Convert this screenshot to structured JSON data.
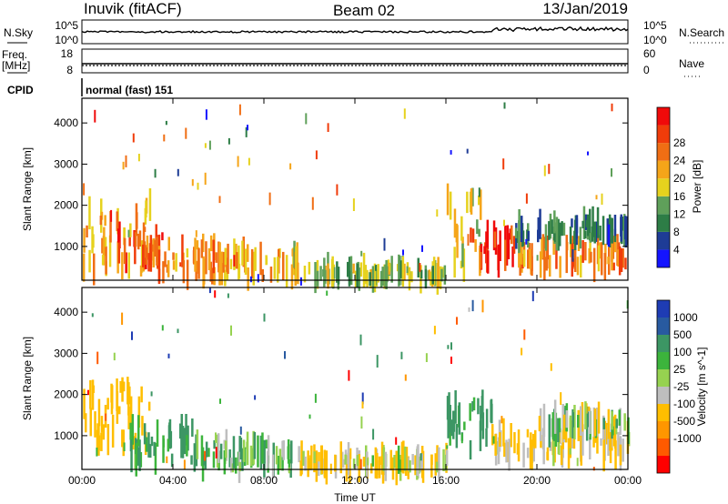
{
  "header": {
    "station": "Inuvik (fitACF)",
    "beam": "Beam 02",
    "date": "13/Jan/2019"
  },
  "top_panels": {
    "nsky_label": "N.Sky",
    "nsky_ticks": [
      "10^5",
      "10^0"
    ],
    "nsearch_label": "N.Search",
    "nsearch_ticks": [
      "10^5",
      "10^0"
    ],
    "freq_label_1": "Freq.",
    "freq_label_2": "[MHz]",
    "freq_ticks": [
      "18",
      "8"
    ],
    "nave_label": "Nave",
    "nave_ticks": [
      "60",
      "0"
    ],
    "cpid_label": "CPID",
    "cpid_text": "normal (fast) 151"
  },
  "colors": {
    "power_scale": [
      "#1414ff",
      "#1e3c96",
      "#2d7d46",
      "#5fa05a",
      "#e6d21e",
      "#f5a519",
      "#f06e14",
      "#f03c0a",
      "#f00a0a"
    ],
    "velocity_scale": [
      "#ff0000",
      "#ff5a00",
      "#ff9600",
      "#ffbe00",
      "#bebebe",
      "#96d250",
      "#3cb43c",
      "#3c9664",
      "#285aa0",
      "#1e3cb4"
    ]
  },
  "chart_data": [
    {
      "type": "heatmap",
      "name": "power",
      "xlabel": "",
      "ylabel": "Slant Range [km]",
      "ylim": [
        180,
        4600
      ],
      "yticks": [
        "1000",
        "2000",
        "3000",
        "4000"
      ],
      "colorbar_label": "Power [dB]",
      "colorbar_ticks": [
        "4",
        "8",
        "12",
        "16",
        "20",
        "24",
        "28"
      ],
      "xticks": [
        "00:00",
        "04:00",
        "08:00",
        "12:00",
        "16:00",
        "20:00",
        "00:00"
      ],
      "x_hours": [
        0,
        24
      ],
      "echo_regions": [
        {
          "t0": 0.0,
          "t1": 3.0,
          "r0": 400,
          "r1": 2100,
          "level": 20
        },
        {
          "t0": 1.5,
          "t1": 3.5,
          "r0": 600,
          "r1": 1300,
          "level": 26
        },
        {
          "t0": 3.0,
          "t1": 6.0,
          "r0": 250,
          "r1": 1100,
          "level": 22
        },
        {
          "t0": 6.0,
          "t1": 9.5,
          "r0": 200,
          "r1": 900,
          "level": 18
        },
        {
          "t0": 9.5,
          "t1": 16.0,
          "r0": 200,
          "r1": 500,
          "level": 14
        },
        {
          "t0": 16.0,
          "t1": 17.5,
          "r0": 500,
          "r1": 2200,
          "level": 16
        },
        {
          "t0": 17.0,
          "t1": 19.0,
          "r0": 600,
          "r1": 1400,
          "level": 26
        },
        {
          "t0": 19.0,
          "t1": 24.0,
          "r0": 500,
          "r1": 1100,
          "level": 22
        },
        {
          "t0": 19.0,
          "t1": 24.0,
          "r0": 1200,
          "r1": 1600,
          "level": 8
        }
      ]
    },
    {
      "type": "heatmap",
      "name": "velocity",
      "xlabel": "Time UT",
      "ylabel": "Slant Range [km]",
      "ylim": [
        180,
        4600
      ],
      "yticks": [
        "1000",
        "2000",
        "3000",
        "4000"
      ],
      "colorbar_label": "Velocity [m s^-1]",
      "colorbar_ticks": [
        "1000",
        "500",
        "100",
        "25",
        "-25",
        "-100",
        "-500",
        "-1000"
      ],
      "xticks": [
        "00:00",
        "04:00",
        "08:00",
        "12:00",
        "16:00",
        "20:00",
        "00:00"
      ],
      "x_hours": [
        0,
        24
      ],
      "echo_regions": [
        {
          "t0": 0.0,
          "t1": 3.0,
          "r0": 700,
          "r1": 2200,
          "level": -300
        },
        {
          "t0": 2.0,
          "t1": 5.0,
          "r0": 400,
          "r1": 1200,
          "level": 150
        },
        {
          "t0": 5.0,
          "t1": 9.5,
          "r0": 200,
          "r1": 800,
          "level": 60
        },
        {
          "t0": 9.5,
          "t1": 16.0,
          "r0": 200,
          "r1": 500,
          "level": -120
        },
        {
          "t0": 16.0,
          "t1": 18.0,
          "r0": 600,
          "r1": 1800,
          "level": 200
        },
        {
          "t0": 18.0,
          "t1": 24.0,
          "r0": 500,
          "r1": 1100,
          "level": -150
        },
        {
          "t0": 20.0,
          "t1": 24.0,
          "r0": 1100,
          "r1": 1500,
          "level": 0
        }
      ]
    }
  ]
}
